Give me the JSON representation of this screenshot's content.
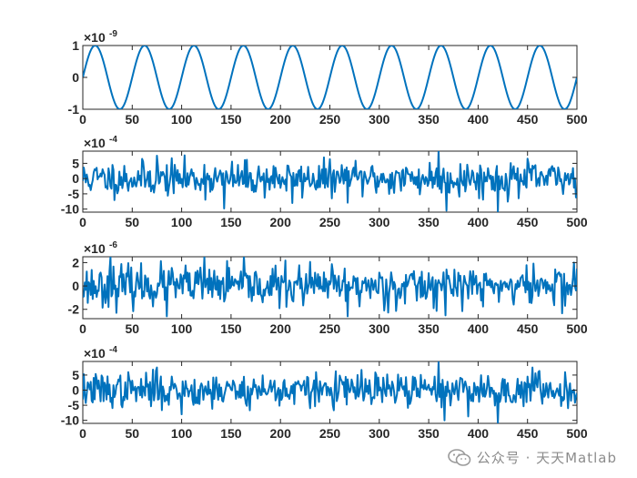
{
  "chart_data": [
    {
      "type": "line",
      "exponent_label": {
        "base": "×10",
        "power": "-9"
      },
      "exponent": -9,
      "xlim": [
        0,
        500
      ],
      "ylim": [
        -1,
        1
      ],
      "xticks": [
        "0",
        "50",
        "100",
        "150",
        "200",
        "250",
        "300",
        "350",
        "400",
        "450",
        "500"
      ],
      "yticks": [
        {
          "v": 1,
          "label": "1"
        },
        {
          "v": 0,
          "label": "0"
        },
        {
          "v": -1,
          "label": "-1"
        }
      ],
      "series": [
        {
          "kind": "sine",
          "amplitude": 1,
          "period": 50,
          "n": 500,
          "color": "#0072BD"
        }
      ]
    },
    {
      "type": "line",
      "exponent_label": {
        "base": "×10",
        "power": "-4"
      },
      "exponent": -4,
      "xlim": [
        0,
        500
      ],
      "ylim": [
        -11,
        9
      ],
      "xticks": [
        "0",
        "50",
        "100",
        "150",
        "200",
        "250",
        "300",
        "350",
        "400",
        "450",
        "500"
      ],
      "yticks": [
        {
          "v": 5,
          "label": "5"
        },
        {
          "v": 0,
          "label": "0"
        },
        {
          "v": -5,
          "label": "-5"
        },
        {
          "v": -10,
          "label": "-10"
        }
      ],
      "series": [
        {
          "kind": "noise",
          "std": 2.8,
          "n": 500,
          "seed": 11,
          "color": "#0072BD",
          "spikes": [
            [
              360,
              9.5
            ],
            [
              368,
              -10.5
            ],
            [
              420,
              -11
            ],
            [
              75,
              7.5
            ],
            [
              143,
              -9.8
            ],
            [
              212,
              -8
            ]
          ]
        }
      ]
    },
    {
      "type": "line",
      "exponent_label": {
        "base": "×10",
        "power": "-6"
      },
      "exponent": -6,
      "xlim": [
        0,
        500
      ],
      "ylim": [
        -2.8,
        2.5
      ],
      "xticks": [
        "0",
        "50",
        "100",
        "150",
        "200",
        "250",
        "300",
        "350",
        "400",
        "450",
        "500"
      ],
      "yticks": [
        {
          "v": 2,
          "label": "2"
        },
        {
          "v": 0,
          "label": "0"
        },
        {
          "v": -2,
          "label": "-2"
        }
      ],
      "series": [
        {
          "kind": "noise",
          "std": 0.85,
          "n": 500,
          "seed": 23,
          "color": "#0072BD",
          "spikes": [
            [
              28,
              2.5
            ],
            [
              85,
              -2.6
            ],
            [
              123,
              2.5
            ],
            [
              268,
              -2.6
            ],
            [
              497,
              2.0
            ]
          ]
        }
      ]
    },
    {
      "type": "line",
      "exponent_label": {
        "base": "×10",
        "power": "-4"
      },
      "exponent": -4,
      "xlim": [
        0,
        500
      ],
      "ylim": [
        -11,
        9.5
      ],
      "xticks": [
        "0",
        "50",
        "100",
        "150",
        "200",
        "250",
        "300",
        "350",
        "400",
        "450",
        "500"
      ],
      "yticks": [
        {
          "v": 5,
          "label": "5"
        },
        {
          "v": 0,
          "label": "0"
        },
        {
          "v": -5,
          "label": "-5"
        },
        {
          "v": -10,
          "label": "-10"
        }
      ],
      "series": [
        {
          "kind": "noise",
          "std": 2.8,
          "n": 500,
          "seed": 37,
          "color": "#0072BD",
          "spikes": [
            [
              360,
              9.5
            ],
            [
              366,
              -10
            ],
            [
              420,
              -11
            ],
            [
              75,
              7.5
            ],
            [
              455,
              7.5
            ],
            [
              100,
              -8
            ]
          ]
        }
      ]
    }
  ],
  "watermark": {
    "text": "公众号 · 天天Matlab",
    "icon": "wechat-icon"
  }
}
